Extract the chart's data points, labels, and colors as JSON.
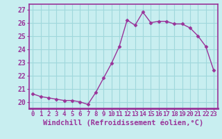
{
  "x": [
    0,
    1,
    2,
    3,
    4,
    5,
    6,
    7,
    8,
    9,
    10,
    11,
    12,
    13,
    14,
    15,
    16,
    17,
    18,
    19,
    20,
    21,
    22,
    23
  ],
  "y": [
    20.6,
    20.4,
    20.3,
    20.2,
    20.1,
    20.1,
    20.0,
    19.8,
    20.7,
    21.8,
    22.9,
    24.2,
    26.2,
    25.8,
    26.8,
    26.0,
    26.1,
    26.1,
    25.9,
    25.9,
    25.6,
    25.0,
    24.2,
    22.4
  ],
  "line_color": "#993399",
  "marker": "D",
  "marker_size": 2.5,
  "bg_color": "#c8eef0",
  "grid_color": "#a0d8dc",
  "xlabel": "Windchill (Refroidissement éolien,°C)",
  "ylabel_ticks": [
    20,
    21,
    22,
    23,
    24,
    25,
    26,
    27
  ],
  "xlabel_ticks": [
    0,
    1,
    2,
    3,
    4,
    5,
    6,
    7,
    8,
    9,
    10,
    11,
    12,
    13,
    14,
    15,
    16,
    17,
    18,
    19,
    20,
    21,
    22,
    23
  ],
  "ylim": [
    19.5,
    27.4
  ],
  "xlim": [
    -0.5,
    23.5
  ],
  "axis_label_color": "#993399",
  "tick_color": "#993399",
  "spine_color": "#993399",
  "font_size_xlabel": 7.5,
  "font_size_yticks": 7,
  "font_size_xticks": 6.5,
  "axis_bg_color": "#cc88cc"
}
